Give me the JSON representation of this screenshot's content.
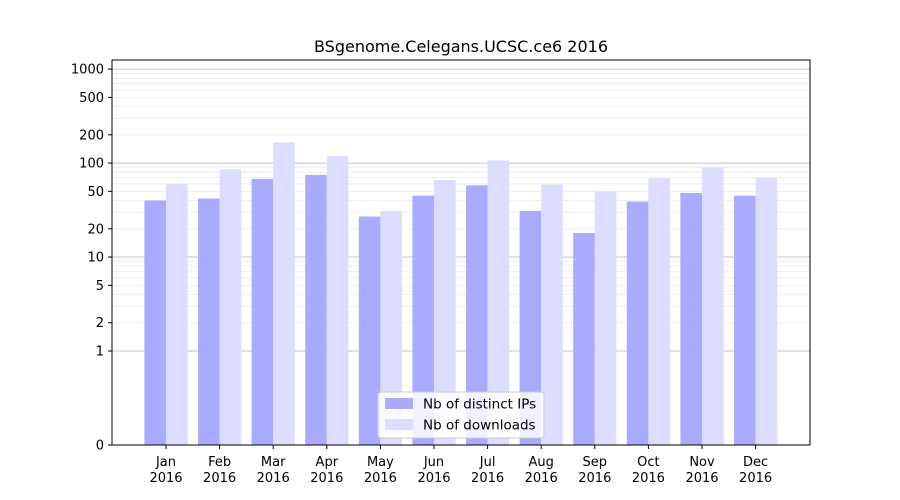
{
  "chart_data": {
    "type": "bar",
    "title": "BSgenome.Celegans.UCSC.ce6 2016",
    "xlabel": "",
    "ylabel": "",
    "yscale": "symlog",
    "ylim": [
      0,
      1250
    ],
    "yticks": [
      0,
      1,
      2,
      5,
      10,
      20,
      50,
      100,
      200,
      500,
      1000
    ],
    "grid": true,
    "legend_position": "bottom-center",
    "categories": [
      [
        "Jan",
        "2016"
      ],
      [
        "Feb",
        "2016"
      ],
      [
        "Mar",
        "2016"
      ],
      [
        "Apr",
        "2016"
      ],
      [
        "May",
        "2016"
      ],
      [
        "Jun",
        "2016"
      ],
      [
        "Jul",
        "2016"
      ],
      [
        "Aug",
        "2016"
      ],
      [
        "Sep",
        "2016"
      ],
      [
        "Oct",
        "2016"
      ],
      [
        "Nov",
        "2016"
      ],
      [
        "Dec",
        "2016"
      ]
    ],
    "series": [
      {
        "name": "Nb of distinct IPs",
        "color": "#aaaaff",
        "values": [
          40,
          42,
          68,
          75,
          27,
          45,
          58,
          31,
          18,
          39,
          48,
          45
        ]
      },
      {
        "name": "Nb of downloads",
        "color": "#ddddff",
        "values": [
          60,
          86,
          166,
          119,
          31,
          66,
          107,
          59,
          50,
          69,
          90,
          70
        ]
      }
    ]
  }
}
